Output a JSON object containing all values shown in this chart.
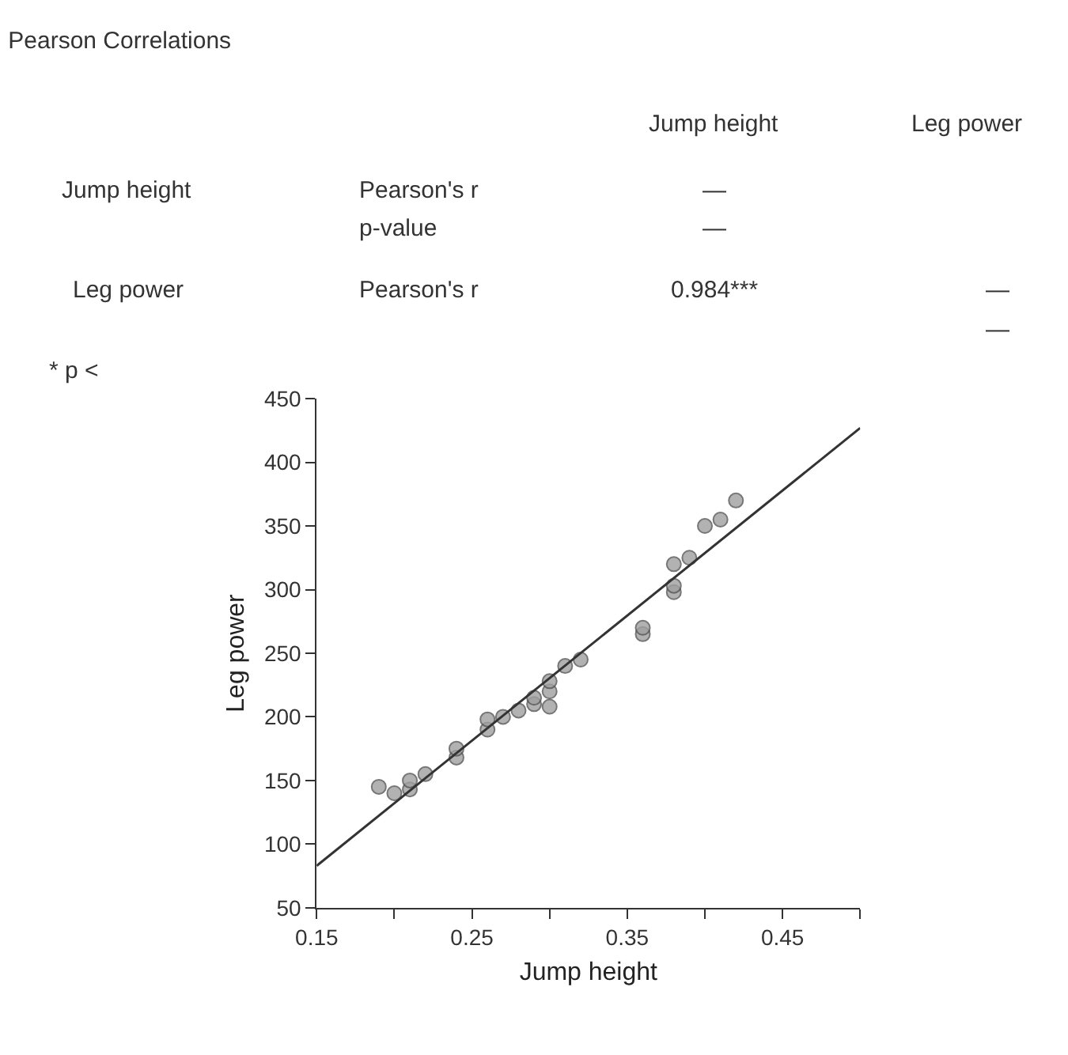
{
  "chart_data": {
    "type": "scatter",
    "title": "Pearson Correlations",
    "xlabel": "Jump height",
    "ylabel": "Leg power",
    "annotations": [
      "Jump height",
      "Leg power",
      "Jump height",
      "Pearson's r",
      "—",
      "p-value",
      "—",
      "Leg power",
      "Pearson's r",
      "0.984***",
      "—",
      "—",
      "* p <"
    ],
    "xlim": [
      0.15,
      0.5
    ],
    "ylim": [
      50,
      450
    ],
    "xticks": [
      0.15,
      {
        "value": 0.2,
        "label": null
      },
      0.25,
      {
        "value": 0.3,
        "label": null
      },
      0.35,
      {
        "value": 0.4,
        "label": null
      },
      0.45,
      {
        "value": 0.5,
        "label": null
      }
    ],
    "yticks": [
      50,
      100,
      150,
      200,
      250,
      300,
      350,
      400,
      450
    ],
    "marker": "circle",
    "series": [
      {
        "color": "#a0a0a0",
        "x": [
          0.19,
          0.2,
          0.21,
          0.21,
          0.22,
          0.24,
          0.24,
          0.26,
          0.26,
          0.27,
          0.28,
          0.29,
          0.29,
          0.3,
          0.3,
          0.3,
          0.31,
          0.32,
          0.36,
          0.36,
          0.38,
          0.38,
          0.38,
          0.39,
          0.4,
          0.41,
          0.42
        ],
        "values": [
          145,
          140,
          143,
          150,
          155,
          168,
          175,
          190,
          198,
          200,
          205,
          210,
          215,
          208,
          220,
          228,
          240,
          245,
          265,
          270,
          298,
          303,
          320,
          325,
          350,
          355,
          370
        ]
      },
      {
        "type": "line",
        "marker": "none",
        "color": "#333333",
        "line_style": "solid",
        "x": [
          0.15,
          0.5
        ],
        "values": [
          83,
          427
        ]
      }
    ]
  }
}
